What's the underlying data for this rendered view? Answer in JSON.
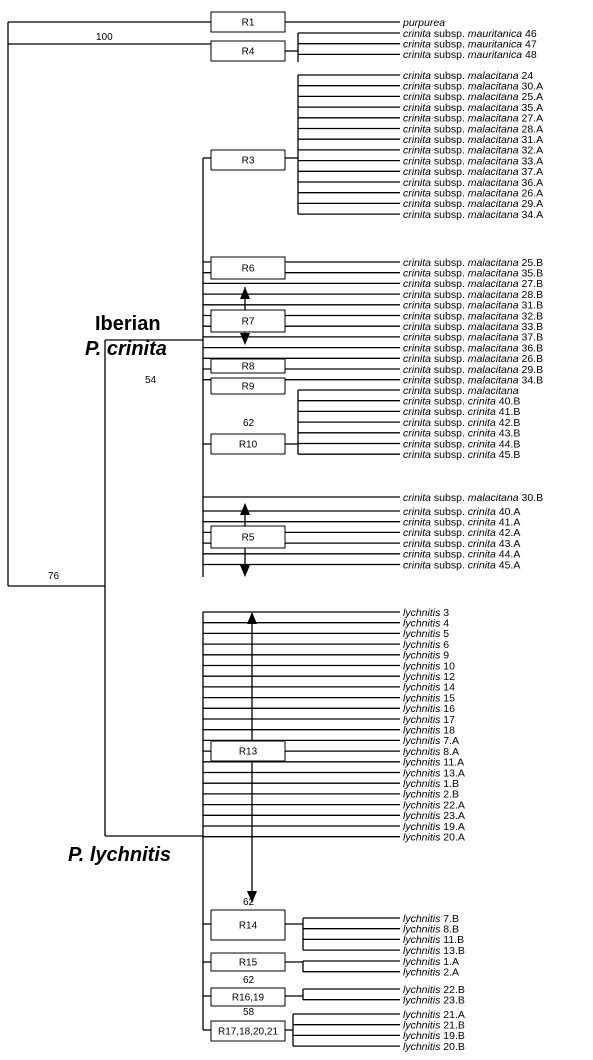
{
  "species": {
    "purpurea": "purpurea",
    "crinita": "crinita",
    "lychnitis": "lychnitis"
  },
  "taxa": {
    "purpurea": [
      {
        "num": ""
      }
    ],
    "mauritanica": [
      {
        "sub": "subsp. ",
        "var": "mauritanica",
        "num": "46"
      },
      {
        "sub": "subsp. ",
        "var": "mauritanica",
        "num": "47"
      },
      {
        "sub": "subsp. ",
        "var": "mauritanica",
        "num": "48"
      }
    ],
    "malacitana_R3": [
      "24",
      "30.A",
      "25.A",
      "35.A",
      "27.A",
      "28.A",
      "31.A",
      "32.A",
      "33.A",
      "37.A",
      "36.A",
      "26.A",
      "29.A",
      "34.A"
    ],
    "malacitana_B": [
      "25.B",
      "35.B",
      "27.B",
      "28.B",
      "31.B",
      "32.B",
      "33.B",
      "37.B",
      "36.B",
      "26.B",
      "29.B",
      "34.B"
    ],
    "crinita_B": [
      "40.B",
      "41.B",
      "42.B",
      "43.B",
      "44.B",
      "45.B"
    ],
    "malacitana_30B": "30.B",
    "crinita_A": [
      "40.A",
      "41.A",
      "42.A",
      "43.A",
      "44.A",
      "45.A"
    ],
    "lychnitis_R13": [
      "3",
      "4",
      "5",
      "6",
      "9",
      "10",
      "12",
      "14",
      "15",
      "16",
      "17",
      "18",
      "7.A",
      "8.A",
      "11.A",
      "13.A",
      "1.B",
      "2.B",
      "22.A",
      "23.A",
      "19.A",
      "20.A"
    ],
    "lychnitis_R14": [
      "7.B",
      "8.B",
      "11.B",
      "13.B"
    ],
    "lychnitis_R15": [
      "1.A",
      "2.A"
    ],
    "lychnitis_R16": [
      "22.B",
      "23.B"
    ],
    "lychnitis_R17": [
      "21.A",
      "21.B",
      "19.B",
      "20.B"
    ]
  },
  "subsp_words": {
    "subsp": "subsp.",
    "mauritanica": "mauritanica",
    "malacitana": "malacitana",
    "crinita": "crinita"
  },
  "regions": {
    "R1": "R1",
    "R4": "R4",
    "R3": "R3",
    "R6": "R6",
    "R7": "R7",
    "R8": "R8",
    "R9": "R9",
    "R10": "R10",
    "R5": "R5",
    "R13": "R13",
    "R14": "R14",
    "R15": "R15",
    "R16": "R16,19",
    "R17": "R17,18,20,21"
  },
  "bootstrap": {
    "root_top": "100",
    "iberian": "54",
    "r10": "62",
    "root_bottom": "76",
    "r14": "62",
    "r16": "62",
    "r17": "58"
  },
  "clades": {
    "iberian_line1": "Iberian",
    "iberian_line2": "P. crinita",
    "lychnitis": "P. lychnitis"
  }
}
